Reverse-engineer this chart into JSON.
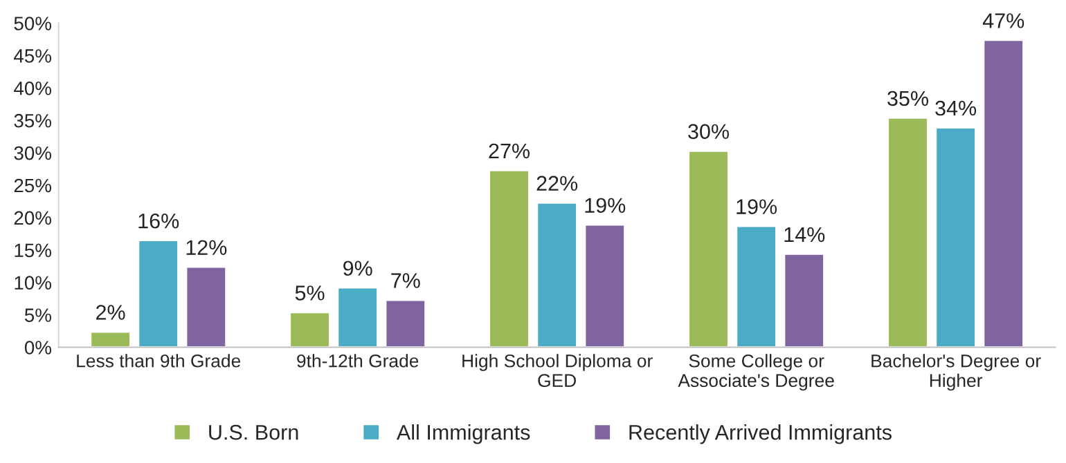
{
  "chart_data": {
    "type": "bar",
    "categories": [
      "Less than 9th Grade",
      "9th-12th Grade",
      "High School Diploma or GED",
      "Some College or Associate's Degree",
      "Bachelor's Degree or Higher"
    ],
    "series": [
      {
        "name": "U.S. Born",
        "color": "#9bbb59",
        "values": [
          2.4,
          5.4,
          27.3,
          30.3,
          35.4
        ],
        "value_labels": [
          "2%",
          "5%",
          "27%",
          "30%",
          "35%"
        ]
      },
      {
        "name": "All Immigrants",
        "color": "#4bacc6",
        "values": [
          16.5,
          9.2,
          22.3,
          18.7,
          33.9
        ],
        "value_labels": [
          "16%",
          "9%",
          "22%",
          "19%",
          "34%"
        ]
      },
      {
        "name": "Recently Arrived Immigrants",
        "color": "#8064a2",
        "values": [
          12.4,
          7.3,
          18.9,
          14.4,
          47.4
        ],
        "value_labels": [
          "12%",
          "7%",
          "19%",
          "14%",
          "47%"
        ]
      }
    ],
    "ylim": [
      0,
      50
    ],
    "yticks": [
      {
        "value": 0,
        "label": "0%"
      },
      {
        "value": 5,
        "label": "5%"
      },
      {
        "value": 10,
        "label": "10%"
      },
      {
        "value": 15,
        "label": "15%"
      },
      {
        "value": 20,
        "label": "20%"
      },
      {
        "value": 25,
        "label": "25%"
      },
      {
        "value": 30,
        "label": "30%"
      },
      {
        "value": 35,
        "label": "35%"
      },
      {
        "value": 40,
        "label": "40%"
      },
      {
        "value": 45,
        "label": "45%"
      },
      {
        "value": 50,
        "label": "50%"
      }
    ],
    "grid": false,
    "legend": "bottom"
  }
}
